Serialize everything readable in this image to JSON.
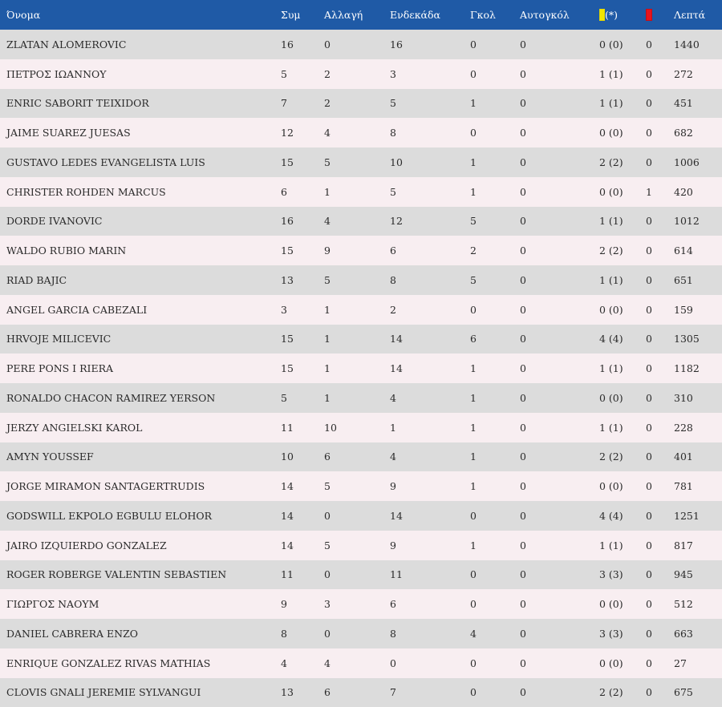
{
  "headers": {
    "name": "Όνομα",
    "apps": "Συμ",
    "subs": "Αλλαγή",
    "starts": "Ενδεκάδα",
    "goals": "Γκολ",
    "own_goals": "Αυτογκόλ",
    "yellow_suffix": "(*)",
    "minutes": "Λεπτά"
  },
  "colors": {
    "header_bg": "#1f5aa6",
    "row_odd": "#dcdcdc",
    "row_even": "#f8eef1",
    "yellow_card": "#f2e600",
    "red_card": "#e8141e"
  },
  "players": [
    {
      "name": "ZLATAN ALOMEROVIC",
      "apps": "16",
      "subs": "0",
      "starts": "16",
      "goals": "0",
      "own_goals": "0",
      "yellow": "0 (0)",
      "red": "0",
      "minutes": "1440"
    },
    {
      "name": "ΠΕΤΡΟΣ ΙΩΑΝΝΟΥ",
      "apps": "5",
      "subs": "2",
      "starts": "3",
      "goals": "0",
      "own_goals": "0",
      "yellow": "1 (1)",
      "red": "0",
      "minutes": "272"
    },
    {
      "name": "ENRIC SABORIT TEIXIDOR",
      "apps": "7",
      "subs": "2",
      "starts": "5",
      "goals": "1",
      "own_goals": "0",
      "yellow": "1 (1)",
      "red": "0",
      "minutes": "451"
    },
    {
      "name": "JAIME SUAREZ JUESAS",
      "apps": "12",
      "subs": "4",
      "starts": "8",
      "goals": "0",
      "own_goals": "0",
      "yellow": "0 (0)",
      "red": "0",
      "minutes": "682"
    },
    {
      "name": "GUSTAVO LEDES EVANGELISTA LUIS",
      "apps": "15",
      "subs": "5",
      "starts": "10",
      "goals": "1",
      "own_goals": "0",
      "yellow": "2 (2)",
      "red": "0",
      "minutes": "1006"
    },
    {
      "name": "CHRISTER ROHDEN MARCUS",
      "apps": "6",
      "subs": "1",
      "starts": "5",
      "goals": "1",
      "own_goals": "0",
      "yellow": "0 (0)",
      "red": "1",
      "minutes": "420"
    },
    {
      "name": "DORDE IVANOVIC",
      "apps": "16",
      "subs": "4",
      "starts": "12",
      "goals": "5",
      "own_goals": "0",
      "yellow": "1 (1)",
      "red": "0",
      "minutes": "1012"
    },
    {
      "name": "WALDO RUBIO MARIN",
      "apps": "15",
      "subs": "9",
      "starts": "6",
      "goals": "2",
      "own_goals": "0",
      "yellow": "2 (2)",
      "red": "0",
      "minutes": "614"
    },
    {
      "name": "RIAD BAJIC",
      "apps": "13",
      "subs": "5",
      "starts": "8",
      "goals": "5",
      "own_goals": "0",
      "yellow": "1 (1)",
      "red": "0",
      "minutes": "651"
    },
    {
      "name": "ANGEL GARCIA CABEZALI",
      "apps": "3",
      "subs": "1",
      "starts": "2",
      "goals": "0",
      "own_goals": "0",
      "yellow": "0 (0)",
      "red": "0",
      "minutes": "159"
    },
    {
      "name": "HRVOJE MILICEVIC",
      "apps": "15",
      "subs": "1",
      "starts": "14",
      "goals": "6",
      "own_goals": "0",
      "yellow": "4 (4)",
      "red": "0",
      "minutes": "1305"
    },
    {
      "name": "PERE PONS I RIERA",
      "apps": "15",
      "subs": "1",
      "starts": "14",
      "goals": "1",
      "own_goals": "0",
      "yellow": "1 (1)",
      "red": "0",
      "minutes": "1182"
    },
    {
      "name": "RONALDO CHACON RAMIREZ YERSON",
      "apps": "5",
      "subs": "1",
      "starts": "4",
      "goals": "1",
      "own_goals": "0",
      "yellow": "0 (0)",
      "red": "0",
      "minutes": "310"
    },
    {
      "name": "JERZY ANGIELSKI KAROL",
      "apps": "11",
      "subs": "10",
      "starts": "1",
      "goals": "1",
      "own_goals": "0",
      "yellow": "1 (1)",
      "red": "0",
      "minutes": "228"
    },
    {
      "name": "AMYN YOUSSEF",
      "apps": "10",
      "subs": "6",
      "starts": "4",
      "goals": "1",
      "own_goals": "0",
      "yellow": "2 (2)",
      "red": "0",
      "minutes": "401"
    },
    {
      "name": "JORGE MIRAMON SANTAGERTRUDIS",
      "apps": "14",
      "subs": "5",
      "starts": "9",
      "goals": "1",
      "own_goals": "0",
      "yellow": "0 (0)",
      "red": "0",
      "minutes": "781"
    },
    {
      "name": "GODSWILL EKPOLO EGBULU ELOHOR",
      "apps": "14",
      "subs": "0",
      "starts": "14",
      "goals": "0",
      "own_goals": "0",
      "yellow": "4 (4)",
      "red": "0",
      "minutes": "1251"
    },
    {
      "name": "JAIRO IZQUIERDO GONZALEZ",
      "apps": "14",
      "subs": "5",
      "starts": "9",
      "goals": "1",
      "own_goals": "0",
      "yellow": "1 (1)",
      "red": "0",
      "minutes": "817"
    },
    {
      "name": "ROGER ROBERGE VALENTIN SEBASTIEN",
      "apps": "11",
      "subs": "0",
      "starts": "11",
      "goals": "0",
      "own_goals": "0",
      "yellow": "3 (3)",
      "red": "0",
      "minutes": "945"
    },
    {
      "name": "ΓΙΩΡΓΟΣ ΝΑΟΥΜ",
      "apps": "9",
      "subs": "3",
      "starts": "6",
      "goals": "0",
      "own_goals": "0",
      "yellow": "0 (0)",
      "red": "0",
      "minutes": "512"
    },
    {
      "name": "DANIEL CABRERA ENZO",
      "apps": "8",
      "subs": "0",
      "starts": "8",
      "goals": "4",
      "own_goals": "0",
      "yellow": "3 (3)",
      "red": "0",
      "minutes": "663"
    },
    {
      "name": "ENRIQUE GONZALEZ RIVAS MATHIAS",
      "apps": "4",
      "subs": "4",
      "starts": "0",
      "goals": "0",
      "own_goals": "0",
      "yellow": "0 (0)",
      "red": "0",
      "minutes": "27"
    },
    {
      "name": "CLOVIS GNALI JEREMIE SYLVANGUI",
      "apps": "13",
      "subs": "6",
      "starts": "7",
      "goals": "0",
      "own_goals": "0",
      "yellow": "2 (2)",
      "red": "0",
      "minutes": "675"
    }
  ]
}
